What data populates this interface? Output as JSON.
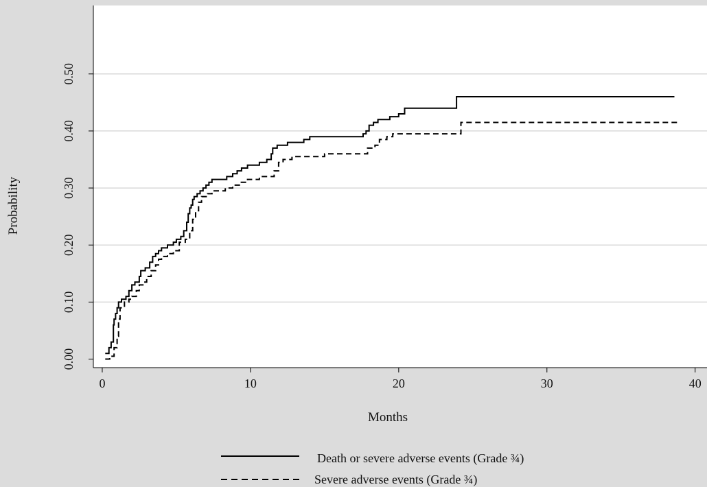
{
  "chart_data": {
    "type": "line",
    "xlabel": "Months",
    "ylabel": "Probability",
    "xlim": [
      -0.6,
      40.8
    ],
    "ylim": [
      -0.015,
      0.62
    ],
    "xticks": [
      0,
      10,
      20,
      30,
      40
    ],
    "xtick_labels": [
      "0",
      "10",
      "20",
      "30",
      "40"
    ],
    "yticks": [
      0,
      0.1,
      0.2,
      0.3,
      0.4,
      0.5
    ],
    "ytick_labels": [
      "0.00",
      "0.10",
      "0.20",
      "0.30",
      "0.40",
      "0.50"
    ],
    "grid": "horizontal",
    "legend_position": "bottom",
    "series": [
      {
        "name": "Death or severe adverse events (Grade ¾)",
        "style": "solid",
        "color": "#000000",
        "x": [
          0.2,
          0.45,
          0.6,
          0.75,
          0.8,
          0.9,
          1.0,
          1.1,
          1.3,
          1.6,
          1.8,
          2.0,
          2.2,
          2.5,
          2.6,
          2.9,
          3.2,
          3.4,
          3.6,
          3.8,
          4.0,
          4.4,
          4.8,
          5.0,
          5.3,
          5.5,
          5.7,
          5.8,
          5.9,
          6.0,
          6.1,
          6.2,
          6.4,
          6.6,
          6.8,
          7.0,
          7.2,
          7.4,
          8.0,
          8.4,
          8.8,
          9.1,
          9.4,
          9.8,
          10.6,
          11.1,
          11.4,
          11.5,
          11.6,
          11.8,
          12.5,
          13.6,
          14.0,
          16.0,
          17.6,
          17.8,
          18.0,
          18.3,
          18.6,
          19.0,
          19.4,
          20.0,
          20.4,
          21.0,
          23.4,
          23.9,
          38.6
        ],
        "y": [
          0.01,
          0.02,
          0.03,
          0.06,
          0.07,
          0.08,
          0.09,
          0.1,
          0.105,
          0.11,
          0.12,
          0.13,
          0.135,
          0.145,
          0.155,
          0.16,
          0.17,
          0.18,
          0.185,
          0.19,
          0.195,
          0.2,
          0.205,
          0.21,
          0.215,
          0.225,
          0.24,
          0.255,
          0.265,
          0.27,
          0.28,
          0.285,
          0.29,
          0.295,
          0.3,
          0.305,
          0.31,
          0.315,
          0.315,
          0.32,
          0.325,
          0.33,
          0.335,
          0.34,
          0.345,
          0.35,
          0.36,
          0.37,
          0.37,
          0.375,
          0.38,
          0.385,
          0.39,
          0.39,
          0.395,
          0.4,
          0.41,
          0.415,
          0.42,
          0.42,
          0.425,
          0.43,
          0.44,
          0.44,
          0.44,
          0.46,
          0.46
        ]
      },
      {
        "name": "Severe adverse events (Grade ¾)",
        "style": "dashed",
        "color": "#000000",
        "x": [
          0.2,
          0.5,
          0.8,
          1.0,
          1.1,
          1.2,
          1.5,
          1.8,
          2.0,
          2.3,
          2.5,
          2.8,
          3.0,
          3.3,
          3.6,
          3.8,
          4.0,
          4.4,
          4.8,
          5.2,
          5.6,
          5.9,
          6.1,
          6.3,
          6.5,
          6.7,
          7.1,
          7.4,
          8.3,
          8.8,
          9.3,
          9.8,
          10.6,
          11.6,
          11.9,
          12.2,
          12.8,
          13.9,
          15.0,
          17.6,
          17.9,
          18.4,
          18.7,
          19.2,
          19.6,
          20.0,
          24.2,
          24.5,
          39.0
        ],
        "y": [
          0.0,
          0.005,
          0.02,
          0.04,
          0.07,
          0.09,
          0.1,
          0.105,
          0.11,
          0.12,
          0.13,
          0.135,
          0.145,
          0.155,
          0.165,
          0.175,
          0.18,
          0.185,
          0.19,
          0.205,
          0.21,
          0.225,
          0.245,
          0.26,
          0.275,
          0.285,
          0.29,
          0.295,
          0.3,
          0.305,
          0.31,
          0.315,
          0.32,
          0.33,
          0.345,
          0.35,
          0.355,
          0.355,
          0.36,
          0.36,
          0.37,
          0.375,
          0.385,
          0.39,
          0.395,
          0.395,
          0.415,
          0.415,
          0.415
        ]
      }
    ]
  }
}
